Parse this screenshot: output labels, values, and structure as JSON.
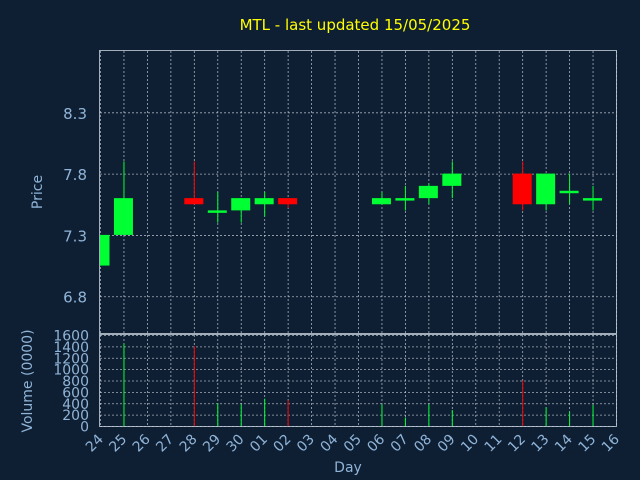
{
  "colors": {
    "background": "#0f1f33",
    "up": "#00ff33",
    "down": "#ff0000",
    "text": "#8fb4d8",
    "title": "#ffff00",
    "grid": "#c8d2dc"
  },
  "chart_data": {
    "type": "candlestick",
    "title": "MTL - last updated 15/05/2025",
    "xlabel": "Day",
    "ylabel": "Price",
    "volume_label": "Volume (0000)",
    "ylim": [
      6.5,
      8.8
    ],
    "yticks": [
      6.8,
      7.3,
      7.8,
      8.3
    ],
    "volume_ylim": [
      0,
      1600
    ],
    "volume_yticks": [
      0,
      200,
      400,
      600,
      800,
      1000,
      1200,
      1400,
      1600
    ],
    "grid": true,
    "categories": [
      "24",
      "25",
      "26",
      "27",
      "28",
      "29",
      "30",
      "01",
      "02",
      "03",
      "04",
      "05",
      "06",
      "07",
      "08",
      "09",
      "10",
      "11",
      "12",
      "13",
      "14",
      "15",
      "16"
    ],
    "candles": [
      {
        "day": "24",
        "open": 7.05,
        "high": 7.3,
        "low": 7.05,
        "close": 7.3,
        "volume": 0
      },
      {
        "day": "25",
        "open": 7.3,
        "high": 7.9,
        "low": 7.3,
        "close": 7.6,
        "volume": 1450
      },
      {
        "day": "28",
        "open": 7.6,
        "high": 7.9,
        "low": 7.55,
        "close": 7.55,
        "volume": 1400
      },
      {
        "day": "29",
        "open": 7.48,
        "high": 7.65,
        "low": 7.4,
        "close": 7.5,
        "volume": 400
      },
      {
        "day": "30",
        "open": 7.5,
        "high": 7.6,
        "low": 7.4,
        "close": 7.6,
        "volume": 380
      },
      {
        "day": "01",
        "open": 7.55,
        "high": 7.65,
        "low": 7.45,
        "close": 7.6,
        "volume": 480
      },
      {
        "day": "02",
        "open": 7.6,
        "high": 7.6,
        "low": 7.52,
        "close": 7.55,
        "volume": 450
      },
      {
        "day": "06",
        "open": 7.55,
        "high": 7.65,
        "low": 7.55,
        "close": 7.6,
        "volume": 380
      },
      {
        "day": "07",
        "open": 7.58,
        "high": 7.7,
        "low": 7.5,
        "close": 7.6,
        "volume": 150
      },
      {
        "day": "08",
        "open": 7.6,
        "high": 7.72,
        "low": 7.55,
        "close": 7.7,
        "volume": 380
      },
      {
        "day": "09",
        "open": 7.7,
        "high": 7.9,
        "low": 7.6,
        "close": 7.8,
        "volume": 280
      },
      {
        "day": "12",
        "open": 7.8,
        "high": 7.9,
        "low": 7.5,
        "close": 7.55,
        "volume": 800
      },
      {
        "day": "13",
        "open": 7.55,
        "high": 7.8,
        "low": 7.5,
        "close": 7.8,
        "volume": 330
      },
      {
        "day": "14",
        "open": 7.64,
        "high": 7.8,
        "low": 7.55,
        "close": 7.66,
        "volume": 250
      },
      {
        "day": "15",
        "open": 7.58,
        "high": 7.7,
        "low": 7.5,
        "close": 7.6,
        "volume": 370
      }
    ]
  }
}
